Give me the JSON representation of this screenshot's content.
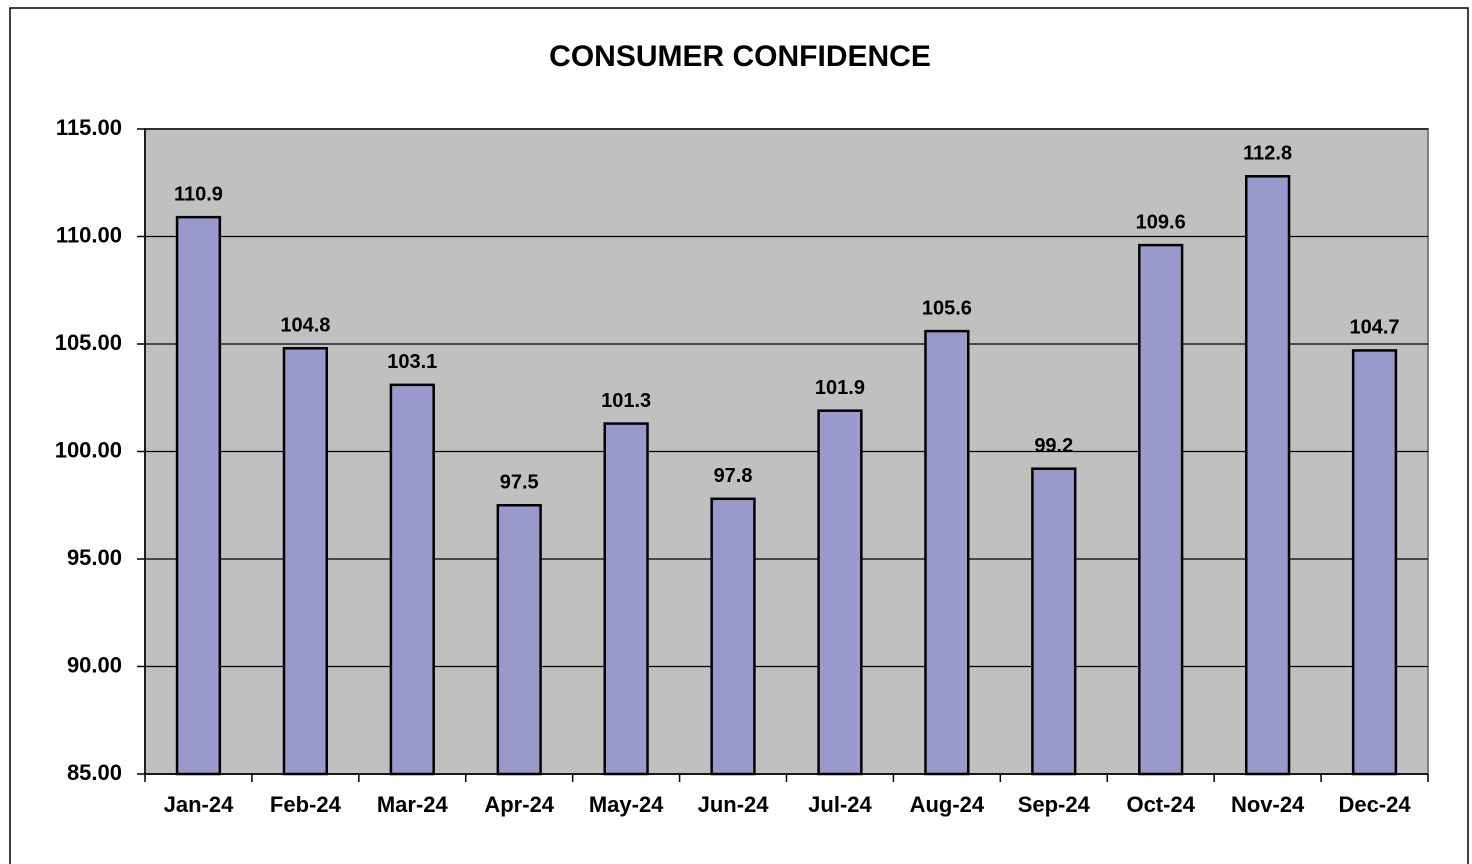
{
  "chart_data": {
    "type": "bar",
    "title": "CONSUMER CONFIDENCE",
    "categories": [
      "Jan-24",
      "Feb-24",
      "Mar-24",
      "Apr-24",
      "May-24",
      "Jun-24",
      "Jul-24",
      "Aug-24",
      "Sep-24",
      "Oct-24",
      "Nov-24",
      "Dec-24"
    ],
    "values": [
      110.9,
      104.8,
      103.1,
      97.5,
      101.3,
      97.8,
      101.9,
      105.6,
      99.2,
      109.6,
      112.8,
      104.7
    ],
    "color": "#9999cc",
    "ylim": [
      85,
      115
    ],
    "yticks": [
      {
        "value": 85,
        "label": "85.00"
      },
      {
        "value": 90,
        "label": "90.00"
      },
      {
        "value": 95,
        "label": "95.00"
      },
      {
        "value": 100,
        "label": "100.00"
      },
      {
        "value": 105,
        "label": "105.00"
      },
      {
        "value": 110,
        "label": "110.00"
      },
      {
        "value": 115,
        "label": "115.00"
      }
    ],
    "grid": true
  }
}
